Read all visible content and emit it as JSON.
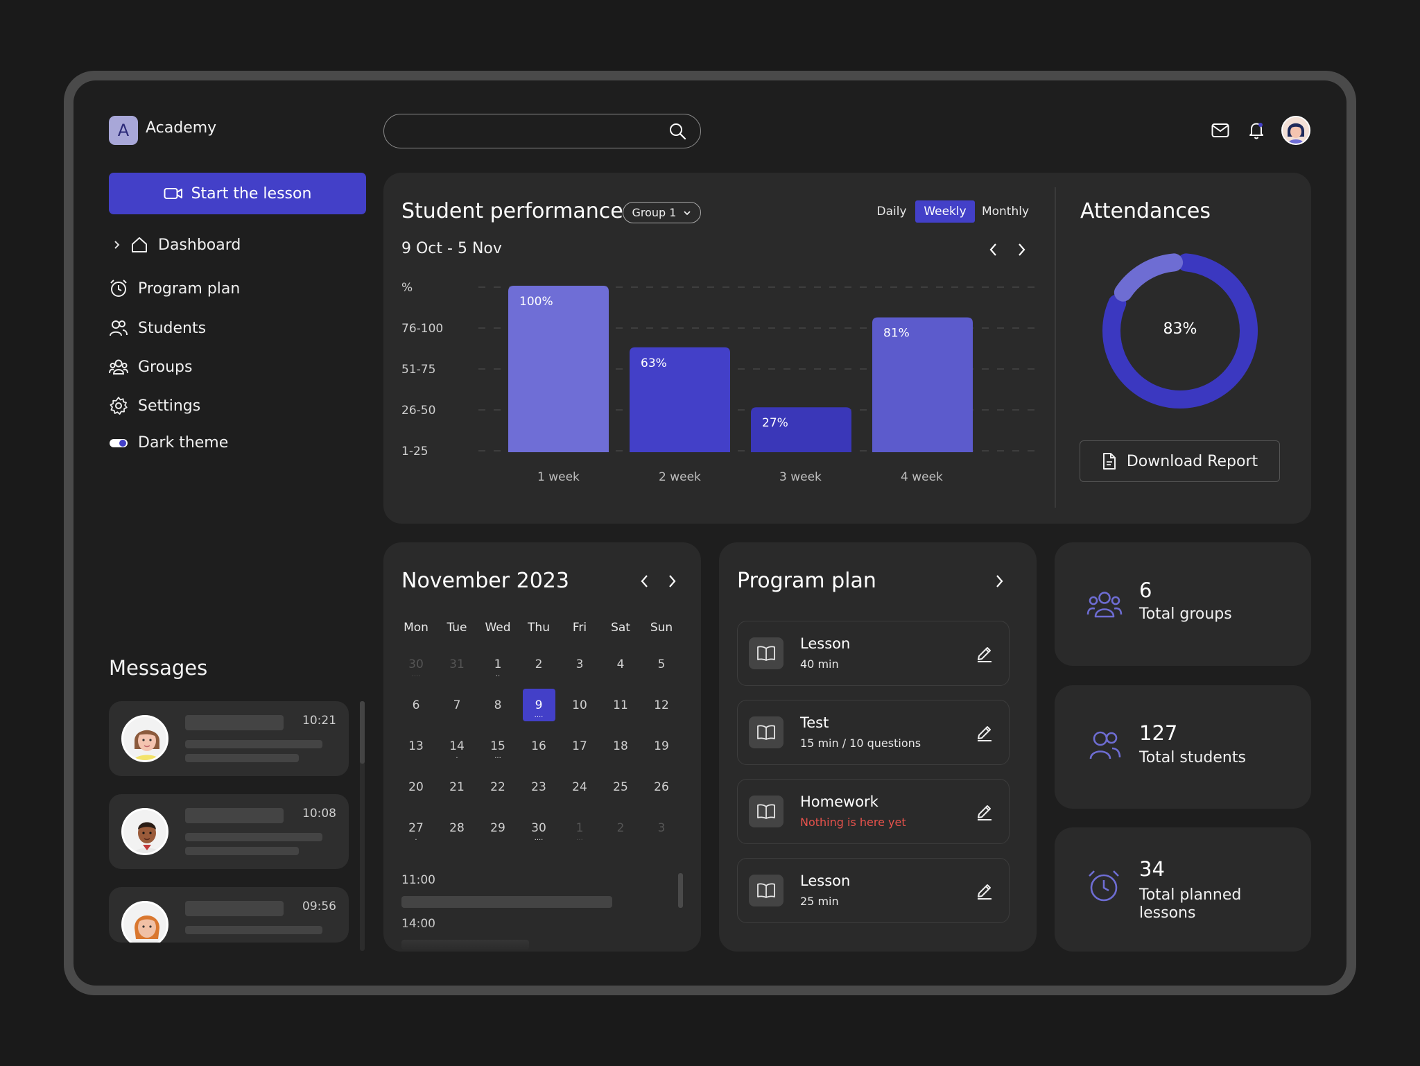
{
  "app": {
    "logo_letter": "A",
    "name": "Academy"
  },
  "sidebar": {
    "start_label": "Start the lesson",
    "items": [
      {
        "label": "Dashboard",
        "icon": "home-icon"
      },
      {
        "label": "Program plan",
        "icon": "alarm-clock-icon"
      },
      {
        "label": "Students",
        "icon": "users-icon"
      },
      {
        "label": "Groups",
        "icon": "groups-icon"
      },
      {
        "label": "Settings",
        "icon": "gear-icon"
      },
      {
        "label": "Dark theme",
        "icon": "toggle-icon",
        "toggle_on": true
      }
    ]
  },
  "messages": {
    "title": "Messages",
    "items": [
      {
        "time": "10:21"
      },
      {
        "time": "10:08"
      },
      {
        "time": "09:56"
      }
    ]
  },
  "search": {
    "placeholder": ""
  },
  "performance": {
    "title": "Student performance",
    "group": "Group 1",
    "ranges": [
      "Daily",
      "Weekly",
      "Monthly"
    ],
    "active_range": "Weekly",
    "date_range": "9 Oct - 5 Nov",
    "ylabels": [
      "%",
      "76-100",
      "51-75",
      "26-50",
      "1-25"
    ]
  },
  "chart_data": {
    "type": "bar",
    "categories": [
      "1 week",
      "2 week",
      "3 week",
      "4 week"
    ],
    "values": [
      100,
      63,
      27,
      81
    ],
    "value_labels": [
      "100%",
      "63%",
      "27%",
      "81%"
    ],
    "colors": [
      "#6f6ed6",
      "#4340c8",
      "#3a37b8",
      "#5c5bcc"
    ],
    "ylabel": "%",
    "ylim": [
      0,
      100
    ],
    "grid": true
  },
  "attendance": {
    "title": "Attendances",
    "percent": 83,
    "percent_label": "83%",
    "download_label": "Download Report",
    "colors": {
      "main": "#3b38c0",
      "accent": "#6e6dd3"
    }
  },
  "calendar": {
    "title": "November 2023",
    "weekdays": [
      "Mon",
      "Tue",
      "Wed",
      "Thu",
      "Fri",
      "Sat",
      "Sun"
    ],
    "weeks": [
      [
        "30",
        "31",
        "1",
        "2",
        "3",
        "4",
        "5"
      ],
      [
        "6",
        "7",
        "8",
        "9",
        "10",
        "11",
        "12"
      ],
      [
        "13",
        "14",
        "15",
        "16",
        "17",
        "18",
        "19"
      ],
      [
        "20",
        "21",
        "22",
        "23",
        "24",
        "25",
        "26"
      ],
      [
        "27",
        "28",
        "29",
        "30",
        "1",
        "2",
        "3"
      ]
    ],
    "today": "9",
    "times": [
      "11:00",
      "14:00"
    ]
  },
  "program_plan": {
    "title": "Program plan",
    "items": [
      {
        "name": "Lesson",
        "sub": "40 min",
        "warn": false
      },
      {
        "name": "Test",
        "sub": "15 min / 10 questions",
        "warn": false
      },
      {
        "name": "Homework",
        "sub": "Nothing is here yet",
        "warn": true
      },
      {
        "name": "Lesson",
        "sub": "25 min",
        "warn": false
      }
    ]
  },
  "stats": [
    {
      "value": "6",
      "label": "Total groups",
      "icon": "groups-icon"
    },
    {
      "value": "127",
      "label": "Total students",
      "icon": "users-icon"
    },
    {
      "value": "34",
      "label": "Total planned lessons",
      "icon": "alarm-clock-icon"
    }
  ],
  "colors": {
    "accent": "#4340c8",
    "panel": "#2a2a2a",
    "background": "#1e1e1e",
    "warning": "#e8524c"
  }
}
